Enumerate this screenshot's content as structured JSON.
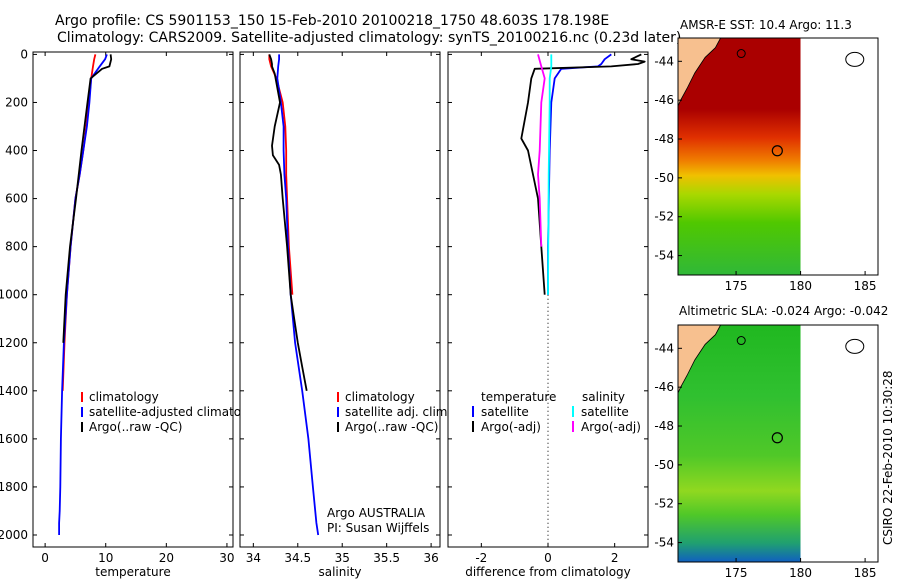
{
  "title": {
    "line1": "Argo profile: CS 5901153_150 15-Feb-2010 20100218_1750 48.603S 178.198E",
    "line2": "Climatology: CARS2009. Satellite-adjusted climatology: synTS_20100216.nc (0.23d later)"
  },
  "colors": {
    "climatology": "#ff0000",
    "satellite": "#0000ff",
    "argo": "#000000",
    "sat_salinity": "#00ffff",
    "argo_salinity": "#ff00ff",
    "land": "#f7c08f"
  },
  "chart_data": [
    {
      "type": "line",
      "name": "temperature-panel",
      "xlabel": "temperature",
      "ylabel": "",
      "xlim": [
        -2,
        31
      ],
      "ylim": [
        2050,
        -10
      ],
      "xticks": [
        0,
        10,
        20,
        30
      ],
      "yticks": [
        0,
        200,
        400,
        600,
        800,
        1000,
        1200,
        1400,
        1600,
        1800,
        2000
      ],
      "series": [
        {
          "name": "climatology",
          "color": "#ff0000",
          "x": [
            8.3,
            8.1,
            7.9,
            7.6,
            7.2,
            6.8,
            6.3,
            5.7,
            5.0,
            4.2,
            3.6,
            3.2,
            2.9
          ],
          "y": [
            0,
            20,
            50,
            100,
            200,
            300,
            400,
            500,
            600,
            800,
            1000,
            1200,
            1400
          ]
        },
        {
          "name": "satellite-adjusted climatology",
          "color": "#0000ff",
          "x": [
            10.2,
            9.9,
            9.0,
            7.6,
            7.3,
            6.9,
            6.3,
            5.7,
            5.0,
            4.2,
            3.6,
            3.1,
            2.8,
            2.6,
            2.5,
            2.4,
            2.3,
            2.3
          ],
          "y": [
            0,
            20,
            50,
            100,
            200,
            300,
            400,
            500,
            600,
            800,
            1000,
            1200,
            1400,
            1600,
            1800,
            1900,
            1950,
            2000
          ]
        },
        {
          "name": "Argo(..raw -QC)",
          "color": "#000000",
          "x": [
            10.8,
            10.9,
            10.8,
            10.6,
            9.4,
            7.5,
            7.0,
            6.0,
            5.1,
            4.1,
            3.4,
            3.0
          ],
          "y": [
            0,
            20,
            30,
            50,
            60,
            100,
            200,
            400,
            600,
            800,
            1000,
            1200
          ]
        }
      ],
      "legend": {
        "position": "lower-middle",
        "entries": [
          "climatology",
          "satellite-adjusted climatology",
          "Argo(..raw -QC)"
        ]
      }
    },
    {
      "type": "line",
      "name": "salinity-panel",
      "xlabel": "salinity",
      "ylabel": "",
      "xlim": [
        33.85,
        36.1
      ],
      "ylim": [
        2050,
        -10
      ],
      "xticks": [
        34,
        34.5,
        35,
        35.5,
        36
      ],
      "xticklabels": [
        "34",
        "34.5",
        "35",
        "35.5",
        "36"
      ],
      "yticks": [
        0,
        200,
        400,
        600,
        800,
        1000,
        1200,
        1400,
        1600,
        1800,
        2000
      ],
      "series": [
        {
          "name": "climatology",
          "color": "#ff0000",
          "x": [
            34.18,
            34.18,
            34.2,
            34.26,
            34.33,
            34.36,
            34.37,
            34.37,
            34.38,
            34.4,
            34.44
          ],
          "y": [
            0,
            20,
            50,
            100,
            200,
            300,
            400,
            500,
            600,
            800,
            1000
          ]
        },
        {
          "name": "satellite adj. clim.",
          "color": "#0000ff",
          "x": [
            34.29,
            34.29,
            34.28,
            34.27,
            34.31,
            34.34,
            34.34,
            34.35,
            34.37,
            34.39,
            34.42,
            34.47,
            34.55,
            34.62,
            34.67,
            34.71,
            34.73
          ],
          "y": [
            0,
            20,
            50,
            100,
            200,
            300,
            400,
            500,
            600,
            800,
            1000,
            1200,
            1400,
            1600,
            1800,
            1950,
            2000
          ]
        },
        {
          "name": "Argo(..raw -QC)",
          "color": "#000000",
          "x": [
            34.18,
            34.2,
            34.21,
            34.21,
            34.24,
            34.3,
            34.24,
            34.21,
            34.22,
            34.29,
            34.31,
            34.33,
            34.38,
            34.42,
            34.46,
            34.5,
            34.55,
            34.6
          ],
          "y": [
            0,
            20,
            40,
            50,
            80,
            200,
            300,
            380,
            420,
            460,
            500,
            600,
            800,
            1000,
            1100,
            1200,
            1300,
            1400
          ]
        }
      ],
      "legend": {
        "position": "lower-right",
        "entries": [
          "climatology",
          "satellite adj. clim.",
          "Argo(..raw -QC)"
        ]
      },
      "annotation": {
        "line1": "Argo AUSTRALIA",
        "line2": "PI: Susan Wijffels"
      }
    },
    {
      "type": "line",
      "name": "difference-panel",
      "xlabel": "difference from climatology",
      "ylabel": "",
      "xlim": [
        -3,
        3
      ],
      "ylim": [
        2050,
        -10
      ],
      "xticks": [
        -2,
        0,
        2
      ],
      "yticks": [
        0,
        200,
        400,
        600,
        800,
        1000,
        1200,
        1400,
        1600,
        1800,
        2000
      ],
      "series": [
        {
          "name": "temperature satellite",
          "color": "#0000ff",
          "x": [
            1.9,
            1.7,
            1.6,
            1.5,
            0.4,
            0.2,
            0.1,
            0.05,
            0.0,
            0.0
          ],
          "y": [
            0,
            20,
            40,
            50,
            60,
            100,
            200,
            400,
            800,
            1000
          ]
        },
        {
          "name": "temperature Argo(-adj)",
          "color": "#000000",
          "x": [
            2.8,
            2.5,
            2.9,
            2.7,
            1.9,
            -0.4,
            -0.5,
            -0.6,
            -0.8,
            -0.6,
            -0.3,
            -0.2,
            -0.1
          ],
          "y": [
            0,
            20,
            30,
            40,
            50,
            60,
            100,
            200,
            350,
            400,
            600,
            800,
            1000
          ]
        },
        {
          "name": "salinity satellite",
          "color": "#00ffff",
          "x": [
            0.1,
            0.1,
            0.05,
            0.05,
            0.02,
            0.0
          ],
          "y": [
            0,
            50,
            100,
            200,
            500,
            1000
          ]
        },
        {
          "name": "salinity Argo(-adj)",
          "color": "#ff00ff",
          "x": [
            -0.3,
            -0.2,
            -0.1,
            -0.2,
            -0.25,
            -0.3,
            -0.25,
            -0.2
          ],
          "y": [
            0,
            50,
            100,
            200,
            400,
            500,
            600,
            800
          ]
        }
      ],
      "legend": {
        "position": "lower-middle",
        "headers": [
          "temperature",
          "salinity"
        ],
        "entries": [
          "satellite",
          "Argo(-adj)",
          "satellite",
          "Argo(-adj)"
        ]
      }
    },
    {
      "type": "heatmap",
      "name": "sst-map",
      "title": "AMSR-E SST: 10.4  Argo: 11.3",
      "xlim": [
        170.5,
        186
      ],
      "ylim": [
        -55,
        -42.8
      ],
      "xticks": [
        175,
        180,
        185
      ],
      "yticks": [
        -44,
        -46,
        -48,
        -50,
        -52,
        -54
      ],
      "float_position": {
        "lon": 178.198,
        "lat": -48.603
      }
    },
    {
      "type": "heatmap",
      "name": "sla-map",
      "title": "Altimetric SLA: -0.024  Argo: -0.042",
      "xlim": [
        170.5,
        186
      ],
      "ylim": [
        -55,
        -42.8
      ],
      "xticks": [
        175,
        180,
        185
      ],
      "yticks": [
        -44,
        -46,
        -48,
        -50,
        -52,
        -54
      ],
      "float_position": {
        "lon": 178.198,
        "lat": -48.603
      }
    }
  ],
  "credit": "CSIRO 22-Feb-2010 10:30:28"
}
